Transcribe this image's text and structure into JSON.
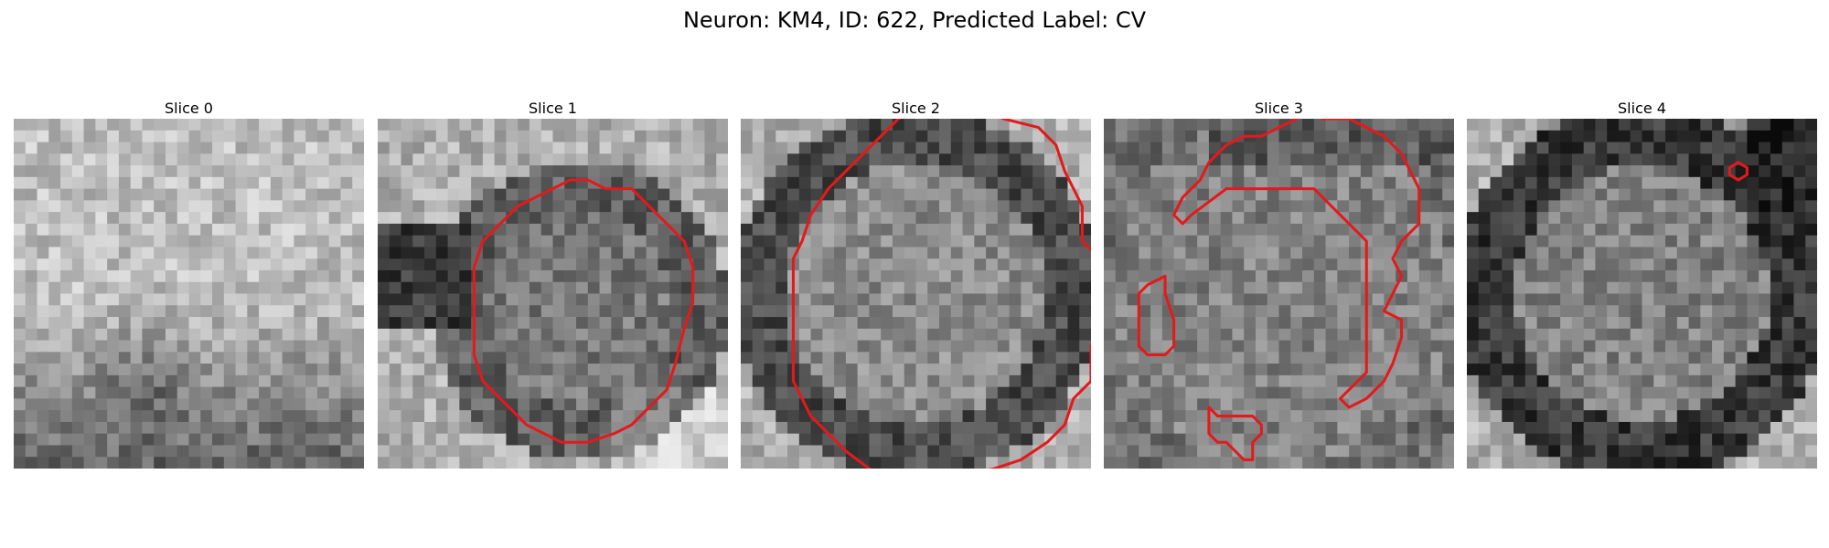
{
  "figure": {
    "title": "Neuron: KM4, ID: 622, Predicted Label: CV"
  },
  "panels": [
    {
      "title": "Slice 0",
      "seed": 11,
      "pattern": "blob-bottom",
      "contour": []
    },
    {
      "title": "Slice 1",
      "seed": 23,
      "pattern": "ring-small",
      "contour": [
        [
          10,
          4
        ],
        [
          11,
          3.5
        ],
        [
          12,
          3.5
        ],
        [
          13,
          4
        ],
        [
          14.5,
          4
        ],
        [
          16,
          5.5
        ],
        [
          17.5,
          7
        ],
        [
          18,
          8.5
        ],
        [
          18,
          10.5
        ],
        [
          17.5,
          12
        ],
        [
          17,
          14
        ],
        [
          16.5,
          15.5
        ],
        [
          15.5,
          16.5
        ],
        [
          14.5,
          17.5
        ],
        [
          13.5,
          18
        ],
        [
          12,
          18.5
        ],
        [
          10.5,
          18.5
        ],
        [
          9.5,
          18
        ],
        [
          8.5,
          17.5
        ],
        [
          7.5,
          16.5
        ],
        [
          6,
          15
        ],
        [
          5.5,
          13.5
        ],
        [
          5.5,
          10.5
        ],
        [
          5.5,
          8.5
        ],
        [
          6,
          7
        ],
        [
          7,
          6
        ],
        [
          8,
          5
        ],
        [
          9,
          4.5
        ]
      ]
    },
    {
      "title": "Slice 2",
      "seed": 37,
      "pattern": "ring-large",
      "contour": [
        [
          9,
          0
        ],
        [
          10,
          -0.5
        ],
        [
          14,
          -0.5
        ],
        [
          15,
          0
        ],
        [
          17,
          0.5
        ],
        [
          18,
          1.5
        ],
        [
          18.5,
          3
        ],
        [
          19,
          4
        ],
        [
          19.5,
          5
        ],
        [
          19.5,
          7
        ],
        [
          20.5,
          8
        ],
        [
          20.5,
          12
        ],
        [
          20,
          13
        ],
        [
          20,
          15
        ],
        [
          19,
          16
        ],
        [
          18.5,
          17.5
        ],
        [
          17.5,
          18.5
        ],
        [
          16,
          19.5
        ],
        [
          14.5,
          20
        ],
        [
          12,
          20.5
        ],
        [
          8,
          20.5
        ],
        [
          6,
          19
        ],
        [
          5,
          18
        ],
        [
          4,
          17
        ],
        [
          3.5,
          16
        ],
        [
          3,
          15
        ],
        [
          3,
          8
        ],
        [
          3.5,
          7
        ],
        [
          4,
          5.5
        ],
        [
          5,
          4
        ],
        [
          6,
          3
        ],
        [
          7,
          2
        ],
        [
          8,
          1
        ]
      ]
    },
    {
      "title": "Slice 3",
      "seed": 51,
      "pattern": "mottled",
      "contours": [
        [
          [
            10,
            0.5
          ],
          [
            11,
            0
          ],
          [
            12,
            -0.5
          ],
          [
            12.5,
            0
          ],
          [
            14,
            0
          ],
          [
            15,
            0.5
          ],
          [
            16,
            1
          ],
          [
            17,
            2
          ],
          [
            17.5,
            3
          ],
          [
            18,
            4
          ],
          [
            18,
            6
          ],
          [
            17,
            7
          ],
          [
            16.5,
            8
          ],
          [
            17,
            9
          ],
          [
            16.5,
            10
          ],
          [
            16,
            11
          ],
          [
            17,
            11.5
          ],
          [
            17,
            12.5
          ],
          [
            16.5,
            14
          ],
          [
            16,
            15
          ],
          [
            15.5,
            15.5
          ],
          [
            15,
            16
          ],
          [
            14,
            16.5
          ],
          [
            13.5,
            16
          ],
          [
            14,
            15.5
          ],
          [
            14.5,
            15
          ],
          [
            15,
            14.5
          ],
          [
            15,
            7
          ],
          [
            13,
            5
          ],
          [
            12,
            4
          ],
          [
            7,
            4
          ],
          [
            5,
            5.5
          ],
          [
            4.5,
            6
          ],
          [
            4,
            5.5
          ],
          [
            4.5,
            4.5
          ],
          [
            5.5,
            3.5
          ],
          [
            6,
            2.5
          ],
          [
            7,
            1.5
          ],
          [
            8,
            1
          ],
          [
            9,
            1
          ]
        ],
        [
          [
            2.5,
            9.5
          ],
          [
            3.5,
            9
          ],
          [
            3.5,
            10
          ],
          [
            4,
            11.5
          ],
          [
            4,
            13
          ],
          [
            3.5,
            13.5
          ],
          [
            2.5,
            13.5
          ],
          [
            2,
            13
          ],
          [
            2,
            10
          ]
        ],
        [
          [
            6,
            16.5
          ],
          [
            6.5,
            17
          ],
          [
            8.5,
            17
          ],
          [
            9,
            17.5
          ],
          [
            9,
            18
          ],
          [
            8.5,
            18.5
          ],
          [
            8.5,
            19.5
          ],
          [
            8,
            19.5
          ],
          [
            7.5,
            19
          ],
          [
            7,
            18.5
          ],
          [
            6.5,
            18.5
          ],
          [
            6,
            18
          ]
        ]
      ]
    },
    {
      "title": "Slice 4",
      "seed": 67,
      "pattern": "ring-dark",
      "contour": [
        [
          15.5,
          2.5
        ],
        [
          16,
          2.8
        ],
        [
          16,
          3.2
        ],
        [
          15.5,
          3.5
        ],
        [
          15,
          3.2
        ],
        [
          15,
          2.8
        ]
      ]
    }
  ]
}
